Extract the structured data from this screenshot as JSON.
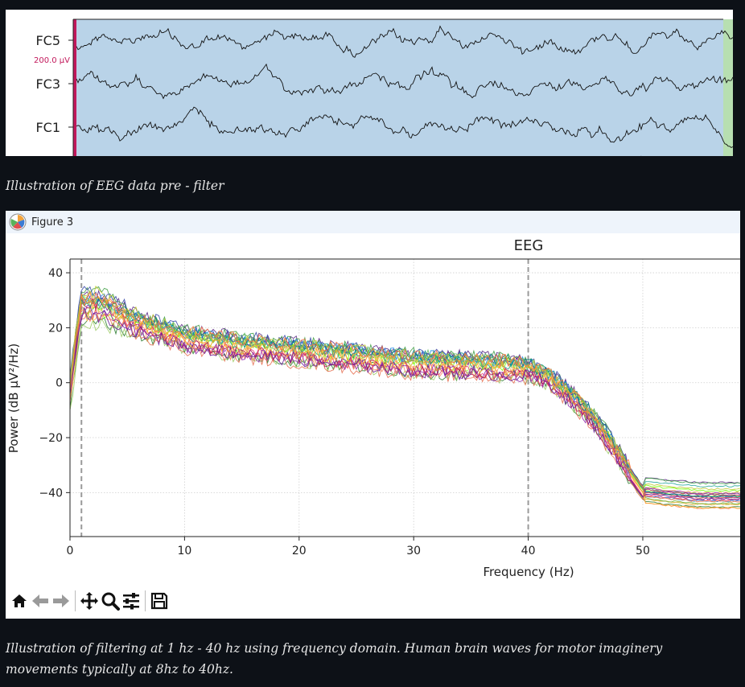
{
  "raw_view": {
    "channels": [
      "FC5",
      "FC3",
      "FC1"
    ],
    "scale_label": "200.0 µV",
    "background_color": "#b9d3e8",
    "marker_left_color": "#c2185b",
    "marker_right_color": "#b7dfb1"
  },
  "captions": {
    "pre_filter": "Illustration of EEG data pre - filter",
    "filtering": "Illustration of filtering at 1 hz - 40 hz using frequency domain. Human brain waves for motor imaginery movements typically at 8hz to 40hz."
  },
  "window": {
    "title": "Figure 3",
    "icon": "matplotlib-logo-icon"
  },
  "toolbar": {
    "buttons": [
      "home-icon",
      "back-arrow-icon",
      "forward-arrow-icon",
      "pan-icon",
      "zoom-icon",
      "configure-subplots-icon",
      "save-icon"
    ]
  },
  "chart_data": {
    "type": "line",
    "title": "EEG",
    "xlabel": "Frequency (Hz)",
    "ylabel": "Power (dB µV²/Hz)",
    "xlim": [
      0,
      58.5
    ],
    "ylim": [
      -56,
      45
    ],
    "xticks": [
      0,
      10,
      20,
      30,
      40,
      50
    ],
    "yticks": [
      40,
      20,
      0,
      -20,
      -40
    ],
    "grid": true,
    "vlines": [
      1,
      40
    ],
    "series_profile": {
      "x": [
        0,
        1,
        3,
        6,
        10,
        15,
        20,
        25,
        30,
        35,
        40,
        42,
        44,
        46,
        48,
        49,
        50,
        52,
        55,
        58.5
      ],
      "y": [
        -3,
        28,
        27,
        21,
        16,
        13,
        11,
        9,
        7,
        6,
        5,
        1,
        -6,
        -15,
        -27,
        -34,
        -40,
        -41,
        -42,
        -42
      ]
    },
    "series_colors": [
      "#7a1f8a",
      "#5b2a86",
      "#2e7d32",
      "#43a047",
      "#66bb6a",
      "#9ccc65",
      "#b2ff59",
      "#76ff03",
      "#ffb74d",
      "#ff8a65",
      "#f4a261",
      "#e76f51",
      "#ec407a",
      "#ad1457",
      "#26a69a",
      "#1e88e5",
      "#3949ab",
      "#00897b",
      "#7cb342",
      "#c0ca33",
      "#8e24aa",
      "#6a1b9a",
      "#ff7043",
      "#ffa726"
    ]
  }
}
